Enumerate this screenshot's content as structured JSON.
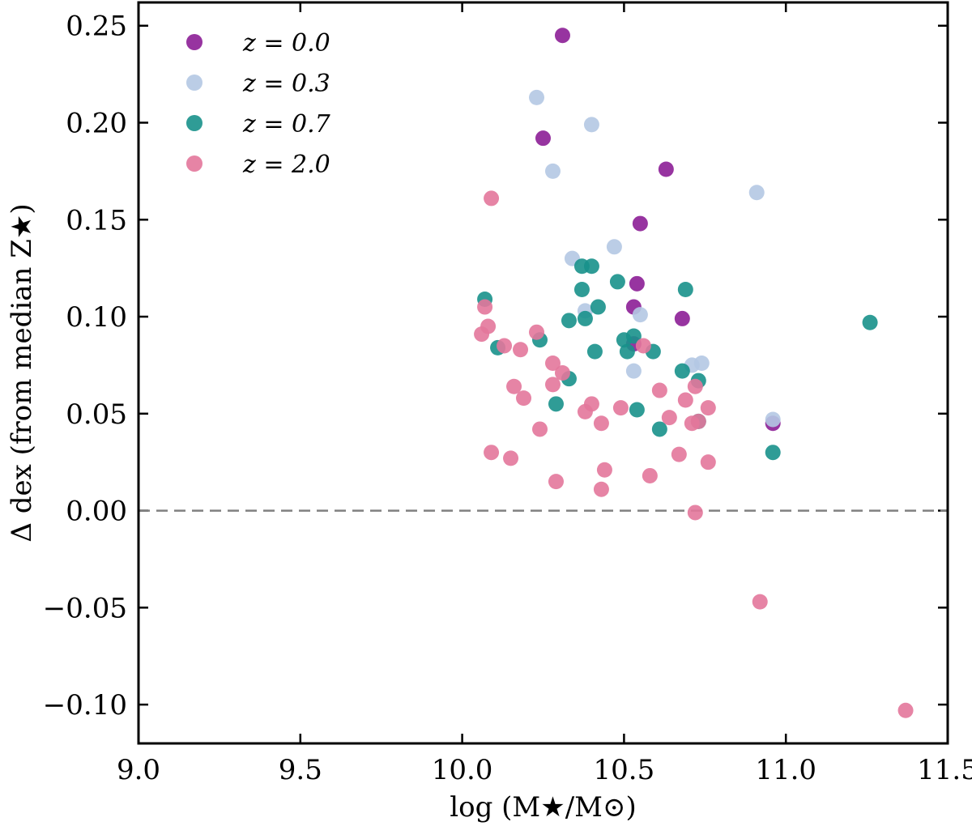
{
  "chart_data": {
    "type": "scatter",
    "title": "",
    "xlabel": "log (M★/M⊙)",
    "ylabel": "Δ dex (from median Z★)",
    "xlim": [
      9.0,
      11.5
    ],
    "ylim": [
      -0.12,
      0.262
    ],
    "xticks": [
      9.0,
      9.5,
      10.0,
      10.5,
      11.0,
      11.5
    ],
    "xtick_labels": [
      "9.0",
      "9.5",
      "10.0",
      "10.5",
      "11.0",
      "11.5"
    ],
    "yticks": [
      -0.1,
      -0.05,
      0.0,
      0.05,
      0.1,
      0.15,
      0.2,
      0.25
    ],
    "ytick_labels": [
      "−0.10",
      "−0.05",
      "0.00",
      "0.05",
      "0.10",
      "0.15",
      "0.20",
      "0.25"
    ],
    "grid": false,
    "legend_position": "top-left",
    "reference_line": {
      "y": 0.0,
      "style": "dashed",
      "color": "#808080"
    },
    "series": [
      {
        "name": "z = 0.0",
        "color": "#8c1e96",
        "x": [
          10.31,
          10.25,
          10.63,
          10.55,
          10.54,
          10.53,
          10.68,
          10.53,
          10.96
        ],
        "y": [
          0.245,
          0.192,
          0.176,
          0.148,
          0.117,
          0.105,
          0.099,
          0.086,
          0.045
        ]
      },
      {
        "name": "z = 0.3",
        "color": "#b4c8e3",
        "x": [
          10.23,
          10.4,
          10.28,
          10.91,
          10.47,
          10.34,
          10.38,
          10.55,
          10.71,
          10.74,
          10.53,
          10.96
        ],
        "y": [
          0.213,
          0.199,
          0.175,
          0.164,
          0.136,
          0.13,
          0.103,
          0.101,
          0.075,
          0.076,
          0.072,
          0.047
        ]
      },
      {
        "name": "z = 0.7",
        "color": "#18918b",
        "x": [
          10.37,
          10.4,
          10.48,
          10.69,
          10.37,
          10.07,
          10.42,
          10.38,
          10.33,
          10.24,
          10.53,
          10.5,
          10.11,
          10.51,
          10.41,
          10.59,
          10.68,
          10.33,
          10.73,
          10.29,
          10.54,
          10.61,
          10.73,
          10.96,
          11.26
        ],
        "y": [
          0.126,
          0.126,
          0.118,
          0.114,
          0.114,
          0.109,
          0.105,
          0.099,
          0.098,
          0.088,
          0.09,
          0.088,
          0.084,
          0.082,
          0.082,
          0.082,
          0.072,
          0.068,
          0.067,
          0.055,
          0.052,
          0.042,
          0.046,
          0.03,
          0.097
        ]
      },
      {
        "name": "z = 2.0",
        "color": "#e3779b",
        "x": [
          10.09,
          10.07,
          10.08,
          10.06,
          10.23,
          10.13,
          10.18,
          10.56,
          10.28,
          10.31,
          10.28,
          10.16,
          10.72,
          10.19,
          10.61,
          10.69,
          10.4,
          10.38,
          10.49,
          10.76,
          10.64,
          10.43,
          10.73,
          10.71,
          10.24,
          10.09,
          10.15,
          10.67,
          10.76,
          10.44,
          10.58,
          10.29,
          10.43,
          10.72,
          10.92,
          11.37
        ],
        "y": [
          0.161,
          0.105,
          0.095,
          0.091,
          0.092,
          0.085,
          0.083,
          0.085,
          0.076,
          0.071,
          0.065,
          0.064,
          0.064,
          0.058,
          0.062,
          0.057,
          0.055,
          0.051,
          0.053,
          0.053,
          0.048,
          0.045,
          0.046,
          0.045,
          0.042,
          0.03,
          0.027,
          0.029,
          0.025,
          0.021,
          0.018,
          0.015,
          0.011,
          -0.001,
          -0.047,
          -0.103
        ]
      }
    ]
  }
}
